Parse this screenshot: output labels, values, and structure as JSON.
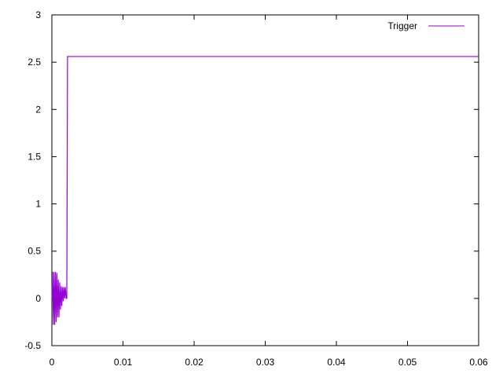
{
  "chart_data": {
    "type": "line",
    "title": "",
    "xlabel": "",
    "ylabel": "",
    "xlim": [
      0,
      0.06
    ],
    "ylim": [
      -0.5,
      3
    ],
    "xticks": [
      "0",
      "0.01",
      "0.02",
      "0.03",
      "0.04",
      "0.05",
      "0.06"
    ],
    "yticks": [
      "-0.5",
      "0",
      "0.5",
      "1",
      "1.5",
      "2",
      "2.5",
      "3"
    ],
    "grid": false,
    "legend": "top-right",
    "series": [
      {
        "name": "Trigger",
        "color": "#9400d3",
        "points": [
          [
            0,
            0
          ],
          [
            0.0001,
            0.28
          ],
          [
            0.0002,
            -0.28
          ],
          [
            0.0003,
            0.28
          ],
          [
            0.0004,
            -0.28
          ],
          [
            0.0005,
            0.28
          ],
          [
            0.0006,
            -0.25
          ],
          [
            0.0007,
            0.27
          ],
          [
            0.0008,
            -0.2
          ],
          [
            0.0009,
            0.2
          ],
          [
            0.001,
            -0.2
          ],
          [
            0.0011,
            0.17
          ],
          [
            0.0012,
            -0.12
          ],
          [
            0.0013,
            0.13
          ],
          [
            0.0014,
            -0.08
          ],
          [
            0.0015,
            0.12
          ],
          [
            0.0016,
            -0.03
          ],
          [
            0.0017,
            0.12
          ],
          [
            0.0018,
            0.0
          ],
          [
            0.0019,
            0.12
          ],
          [
            0.002,
            0.0
          ],
          [
            0.0021,
            0.0
          ],
          [
            0.0022,
            2.56
          ],
          [
            0.06,
            2.56
          ]
        ]
      }
    ]
  }
}
